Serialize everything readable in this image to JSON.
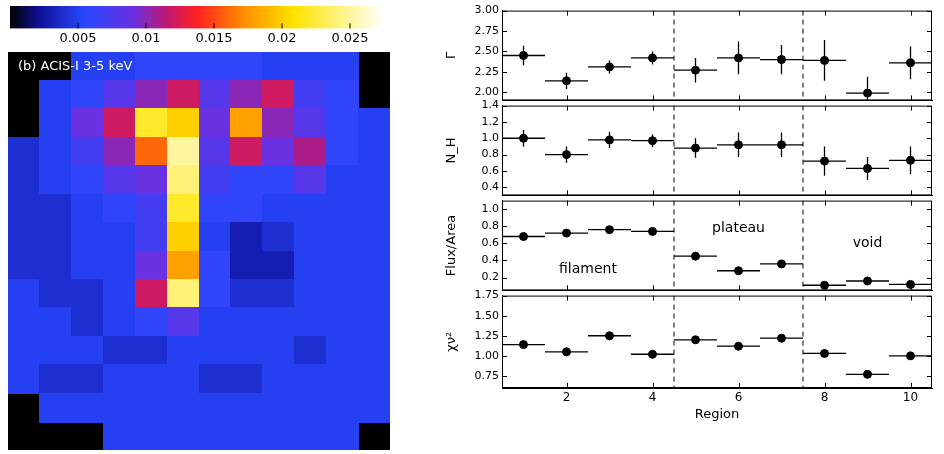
{
  "chart_data": [
    {
      "type": "heatmap",
      "title": "(b) ACIS-I 3-5 keV",
      "tick_labels": false,
      "colorbar_range": [
        0,
        0.0275
      ],
      "colorbar_ticks": [
        0.005,
        0.01,
        0.015,
        0.02,
        0.025
      ],
      "cells": [
        [
          null,
          null,
          0.005,
          0.005,
          0.006,
          0.006,
          0.006,
          0.006,
          0.005,
          0.005,
          0.005,
          null
        ],
        [
          null,
          0.005,
          0.006,
          0.008,
          0.01,
          0.012,
          0.008,
          0.01,
          0.012,
          0.007,
          0.006,
          null
        ],
        [
          null,
          0.005,
          0.009,
          0.012,
          0.022,
          0.02,
          0.009,
          0.018,
          0.01,
          0.008,
          0.006,
          0.005
        ],
        [
          0.004,
          0.005,
          0.007,
          0.01,
          0.016,
          0.025,
          0.008,
          0.012,
          0.009,
          0.011,
          0.006,
          0.005
        ],
        [
          0.004,
          0.005,
          0.006,
          0.008,
          0.009,
          0.024,
          0.007,
          0.006,
          0.006,
          0.008,
          0.005,
          0.005
        ],
        [
          0.004,
          0.004,
          0.005,
          0.006,
          0.007,
          0.022,
          0.006,
          0.006,
          0.005,
          0.005,
          0.005,
          0.005
        ],
        [
          0.004,
          0.004,
          0.005,
          0.005,
          0.007,
          0.02,
          0.005,
          0.003,
          0.004,
          0.005,
          0.005,
          0.005
        ],
        [
          0.004,
          0.004,
          0.005,
          0.005,
          0.009,
          0.018,
          0.006,
          0.003,
          0.003,
          0.005,
          0.005,
          0.005
        ],
        [
          0.005,
          0.004,
          0.004,
          0.005,
          0.012,
          0.024,
          0.006,
          0.004,
          0.004,
          0.005,
          0.005,
          0.005
        ],
        [
          0.005,
          0.005,
          0.004,
          0.005,
          0.006,
          0.008,
          0.005,
          0.005,
          0.005,
          0.005,
          0.005,
          0.005
        ],
        [
          0.005,
          0.005,
          0.005,
          0.004,
          0.004,
          0.005,
          0.005,
          0.005,
          0.005,
          0.004,
          0.005,
          0.005
        ],
        [
          0.005,
          0.004,
          0.004,
          0.005,
          0.005,
          0.005,
          0.004,
          0.004,
          0.005,
          0.005,
          0.005,
          0.005
        ],
        [
          null,
          0.005,
          0.005,
          0.005,
          0.005,
          0.005,
          0.005,
          0.005,
          0.005,
          0.005,
          0.005,
          0.005
        ],
        [
          null,
          null,
          null,
          0.005,
          0.005,
          0.005,
          0.005,
          0.005,
          0.005,
          0.005,
          0.005,
          null
        ]
      ]
    },
    {
      "type": "scatter",
      "y_label": "Γ",
      "tick_labels": "y",
      "grid": false,
      "marker": "circle",
      "color": "#000000",
      "x": [
        1,
        2,
        3,
        4,
        5,
        6,
        7,
        8,
        9,
        10
      ],
      "values": [
        2.45,
        2.14,
        2.31,
        2.42,
        2.27,
        2.42,
        2.4,
        2.39,
        1.99,
        2.36
      ],
      "y_errors": [
        0.12,
        0.1,
        0.08,
        0.08,
        0.15,
        0.2,
        0.18,
        0.25,
        0.2,
        0.2
      ],
      "x_errors": [
        0.5,
        0.5,
        0.5,
        0.5,
        0.5,
        0.5,
        0.5,
        0.5,
        0.5,
        0.5
      ],
      "xlim": [
        0.5,
        10.5
      ],
      "xticks": [
        2,
        4,
        6,
        8,
        10
      ],
      "ylim": [
        1.9,
        3.0
      ],
      "yticks": [
        {
          "value": 2,
          "label": "2.00"
        },
        2.25,
        {
          "value": 2.5,
          "label": "2.50"
        },
        2.75,
        {
          "value": 3,
          "label": "3.00"
        }
      ],
      "dividers": [
        4.5,
        7.5
      ]
    },
    {
      "type": "scatter",
      "y_label": "N_H",
      "tick_labels": "y",
      "grid": false,
      "marker": "circle",
      "color": "#000000",
      "x": [
        1,
        2,
        3,
        4,
        5,
        6,
        7,
        8,
        9,
        10
      ],
      "values": [
        1.0,
        0.8,
        0.98,
        0.97,
        0.88,
        0.92,
        0.92,
        0.72,
        0.63,
        0.73
      ],
      "y_errors": [
        0.1,
        0.1,
        0.1,
        0.08,
        0.12,
        0.15,
        0.15,
        0.18,
        0.14,
        0.17
      ],
      "x_errors": [
        0.5,
        0.5,
        0.5,
        0.5,
        0.5,
        0.5,
        0.5,
        0.5,
        0.5,
        0.5
      ],
      "xlim": [
        0.5,
        10.5
      ],
      "xticks": [
        2,
        4,
        6,
        8,
        10
      ],
      "ylim": [
        0.3,
        1.4
      ],
      "yticks": [
        0.4,
        0.6,
        0.8,
        {
          "value": 1,
          "label": "1.0"
        },
        1.2,
        1.4
      ],
      "dividers": [
        4.5,
        7.5
      ]
    },
    {
      "type": "scatter",
      "y_label": "Flux/Area",
      "tick_labels": "y",
      "grid": false,
      "marker": "circle",
      "color": "#000000",
      "x": [
        1,
        2,
        3,
        4,
        5,
        6,
        7,
        8,
        9,
        10
      ],
      "values": [
        0.68,
        0.72,
        0.76,
        0.74,
        0.45,
        0.28,
        0.36,
        0.11,
        0.16,
        0.12
      ],
      "y_errors": [
        0.02,
        0.02,
        0.02,
        0.02,
        0.02,
        0.02,
        0.02,
        0.02,
        0.02,
        0.02
      ],
      "x_errors": [
        0.5,
        0.5,
        0.5,
        0.5,
        0.5,
        0.5,
        0.5,
        0.5,
        0.5,
        0.5
      ],
      "xlim": [
        0.5,
        10.5
      ],
      "xticks": [
        2,
        4,
        6,
        8,
        10
      ],
      "ylim": [
        0.05,
        1.1
      ],
      "yticks": [
        0.2,
        0.4,
        0.6,
        0.8,
        {
          "value": 1,
          "label": "1.0"
        }
      ],
      "dividers": [
        4.5,
        7.5
      ],
      "annotations": [
        {
          "text": "filament",
          "x": 2.5,
          "y": 0.3
        },
        {
          "text": "plateau",
          "x": 6,
          "y": 0.78
        },
        {
          "text": "void",
          "x": 9,
          "y": 0.6
        }
      ]
    },
    {
      "type": "scatter",
      "y_label": "χν²",
      "x_label": "Region",
      "grid": false,
      "marker": "circle",
      "color": "#000000",
      "x": [
        1,
        2,
        3,
        4,
        5,
        6,
        7,
        8,
        9,
        10
      ],
      "values": [
        1.14,
        1.05,
        1.25,
        1.02,
        1.2,
        1.12,
        1.22,
        1.03,
        0.77,
        1.0
      ],
      "x_errors": [
        0.5,
        0.5,
        0.5,
        0.5,
        0.5,
        0.5,
        0.5,
        0.5,
        0.5,
        0.5
      ],
      "xlim": [
        0.5,
        10.5
      ],
      "xticks": [
        2,
        4,
        6,
        8,
        10
      ],
      "ylim": [
        0.6,
        1.75
      ],
      "yticks": [
        0.75,
        {
          "value": 1,
          "label": "1.00"
        },
        1.25,
        {
          "value": 1.5,
          "label": "1.50"
        },
        1.75
      ],
      "dividers": [
        4.5,
        7.5
      ]
    }
  ]
}
